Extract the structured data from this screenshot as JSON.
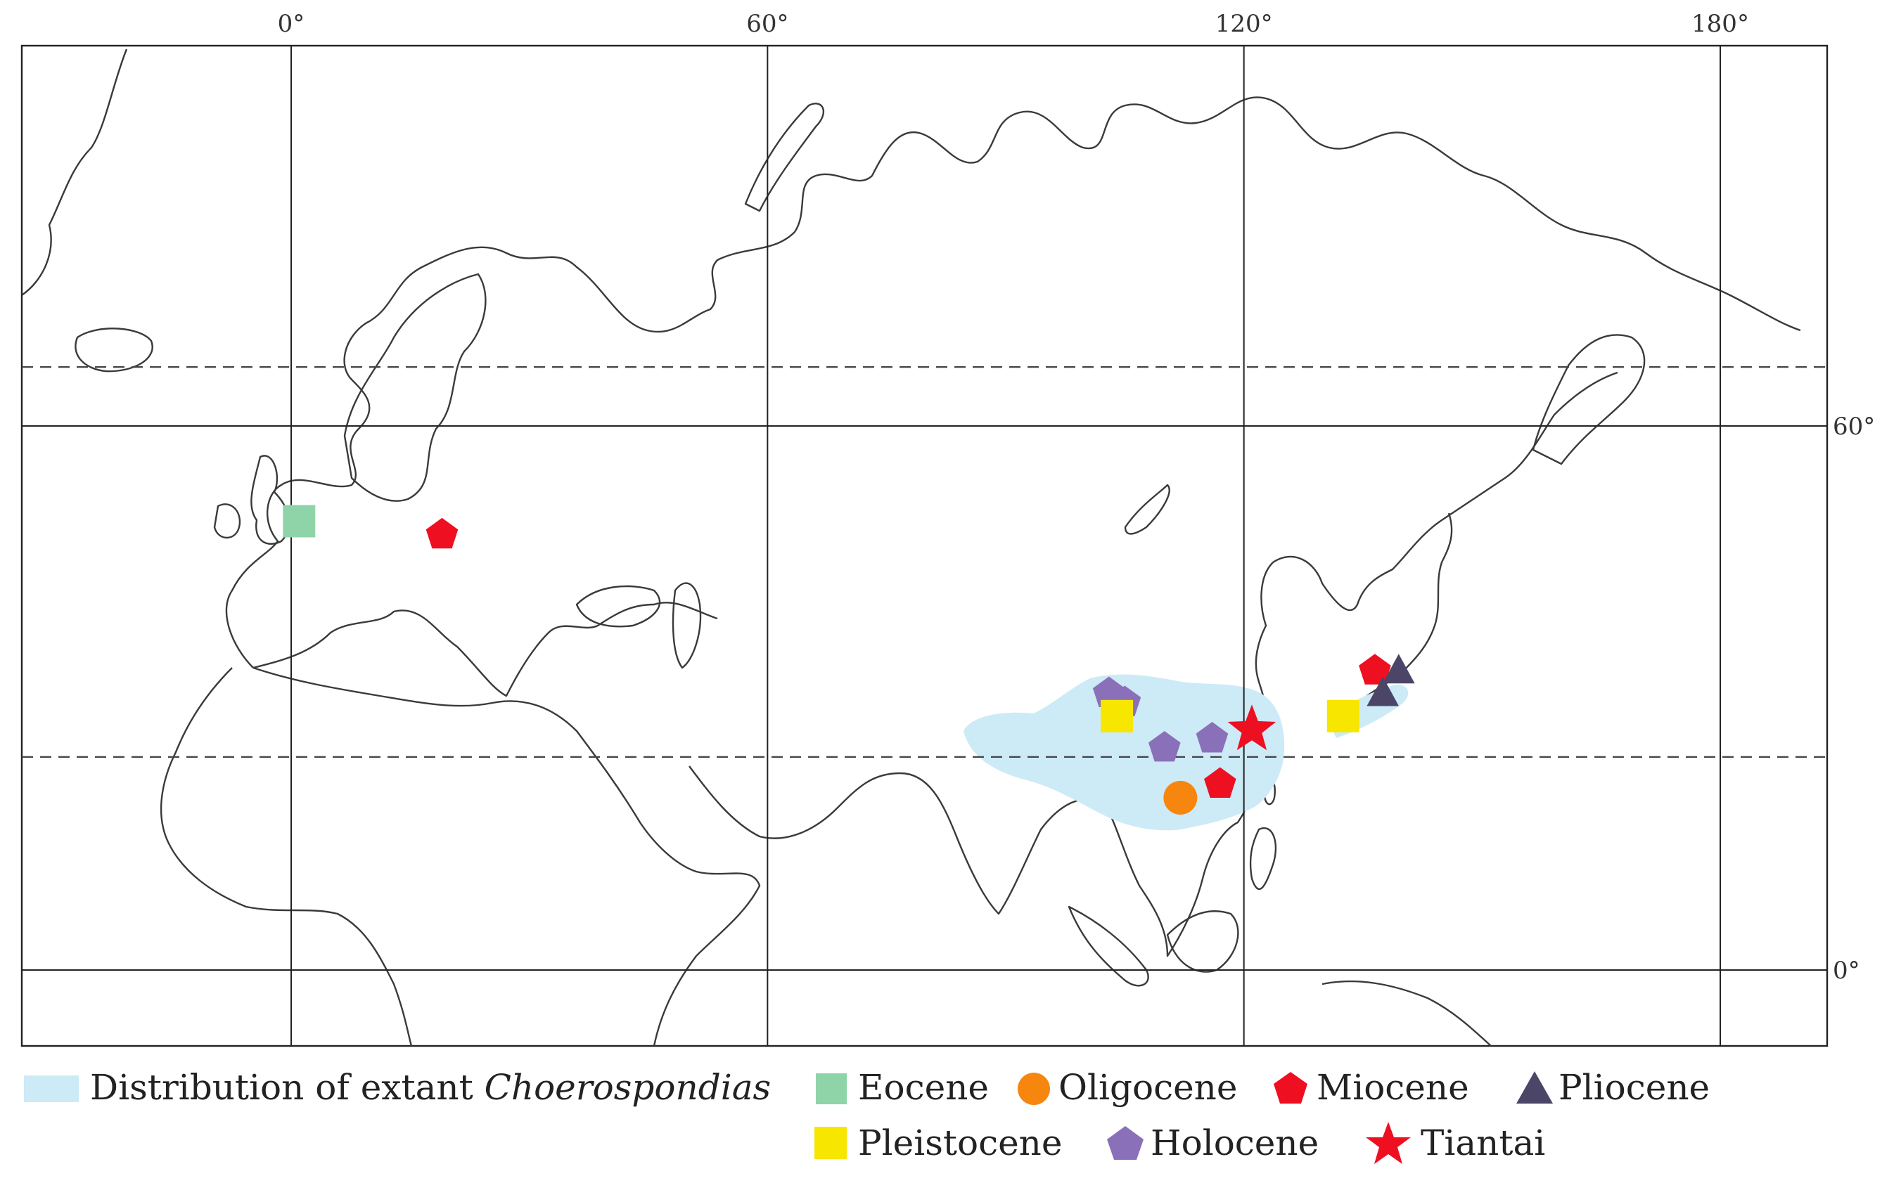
{
  "map": {
    "longitude_labels": [
      {
        "value": 0,
        "label": "0°"
      },
      {
        "value": 60,
        "label": "60°"
      },
      {
        "value": 120,
        "label": "120°"
      },
      {
        "value": 180,
        "label": "180°"
      }
    ],
    "latitude_labels": [
      {
        "value": 60,
        "label": "60°"
      },
      {
        "value": 0,
        "label": "0°"
      }
    ],
    "dashed_parallels": [
      66.5,
      23.5
    ],
    "colors": {
      "distribution": "#cdeaf7",
      "eocene": "#8fd4a8",
      "oligocene": "#f7860f",
      "miocene": "#ee0f21",
      "pliocene": "#4b4668",
      "pleistocene": "#f7e600",
      "holocene": "#8a70b8",
      "tiantai": "#ee0f21"
    }
  },
  "localities": [
    {
      "period": "Eocene",
      "symbol": "square",
      "lon": 1,
      "lat": 49.5
    },
    {
      "period": "Miocene",
      "symbol": "pentagon",
      "lon": 19,
      "lat": 48
    },
    {
      "period": "Holocene",
      "symbol": "pentagon",
      "lon": 103,
      "lat": 30.5
    },
    {
      "period": "Holocene",
      "symbol": "pentagon",
      "lon": 105,
      "lat": 29.5
    },
    {
      "period": "Pleistocene",
      "symbol": "square",
      "lon": 104,
      "lat": 28
    },
    {
      "period": "Holocene",
      "symbol": "pentagon",
      "lon": 110,
      "lat": 24.5
    },
    {
      "period": "Holocene",
      "symbol": "pentagon",
      "lon": 116,
      "lat": 25.5
    },
    {
      "period": "Miocene",
      "symbol": "pentagon",
      "lon": 117,
      "lat": 20.5
    },
    {
      "period": "Oligocene",
      "symbol": "circle",
      "lon": 112,
      "lat": 19
    },
    {
      "period": "Miocene",
      "symbol": "pentagon",
      "lon": 136.5,
      "lat": 33
    },
    {
      "period": "Pliocene",
      "symbol": "triangle",
      "lon": 139.5,
      "lat": 33
    },
    {
      "period": "Pliocene",
      "symbol": "triangle",
      "lon": 137.5,
      "lat": 30.5
    },
    {
      "period": "Pleistocene",
      "symbol": "square",
      "lon": 132.5,
      "lat": 28
    },
    {
      "period": "Tiantai",
      "symbol": "star",
      "lon": 121,
      "lat": 26.5
    }
  ],
  "legend": {
    "distribution_prefix": "Distribution of extant ",
    "distribution_genus": "Choerospondias",
    "eocene": "Eocene",
    "oligocene": "Oligocene",
    "miocene": "Miocene",
    "pliocene": "Pliocene",
    "pleistocene": "Pleistocene",
    "holocene": "Holocene",
    "tiantai": "Tiantai"
  }
}
